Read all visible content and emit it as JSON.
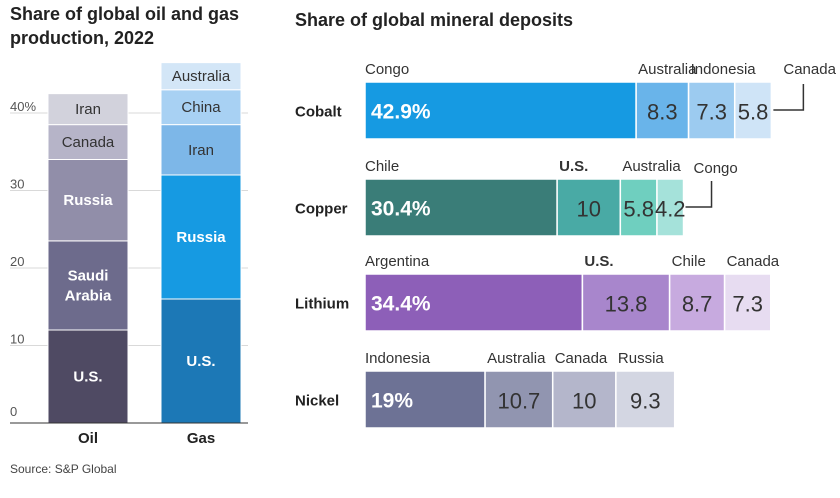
{
  "left_title_line1": "Share of global oil and gas",
  "left_title_line2": "production, 2022",
  "right_title": "Share of global mineral deposits",
  "source": "Source: S&P Global",
  "chart_data": [
    {
      "type": "bar",
      "stacked": true,
      "categories": [
        "Oil",
        "Gas"
      ],
      "ylim": [
        0,
        42
      ],
      "yticks": [
        "0",
        "10",
        "20",
        "30",
        "40%"
      ],
      "stacks": [
        {
          "category": "Oil",
          "segments": [
            {
              "label": "U.S.",
              "value": 12,
              "color": "#4f4a63"
            },
            {
              "label": "Saudi Arabia",
              "value": 11.5,
              "color": "#6d6b8c"
            },
            {
              "label": "Russia",
              "value": 10.5,
              "color": "#918ea9"
            },
            {
              "label": "Canada",
              "value": 4.5,
              "color": "#b6b4c8"
            },
            {
              "label": "Iran",
              "value": 4,
              "color": "#d2d2dc"
            }
          ]
        },
        {
          "category": "Gas",
          "segments": [
            {
              "label": "U.S.",
              "value": 16,
              "color": "#1c78b6"
            },
            {
              "label": "Russia",
              "value": 16,
              "color": "#169ae2"
            },
            {
              "label": "Iran",
              "value": 6.5,
              "color": "#7db7e8"
            },
            {
              "label": "China",
              "value": 4.5,
              "color": "#a8d1f3"
            },
            {
              "label": "Australia",
              "value": 3.5,
              "color": "#d3e6f7"
            }
          ]
        }
      ]
    },
    {
      "type": "bar",
      "orientation": "horizontal",
      "stacked": true,
      "categories": [
        "Cobalt",
        "Copper",
        "Lithium",
        "Nickel"
      ],
      "rows": [
        {
          "category": "Cobalt",
          "segments": [
            {
              "label": "Congo",
              "value": 42.9,
              "display": "42.9%",
              "color": "#169ae2"
            },
            {
              "label": "Australia",
              "value": 8.3,
              "display": "8.3",
              "color": "#69b4ea"
            },
            {
              "label": "Indonesia",
              "value": 7.3,
              "display": "7.3",
              "color": "#9ccbf0"
            },
            {
              "label": "Canada",
              "value": 5.8,
              "display": "5.8",
              "color": "#cfe4f7"
            }
          ]
        },
        {
          "category": "Copper",
          "segments": [
            {
              "label": "Chile",
              "value": 30.4,
              "display": "30.4%",
              "color": "#3a7d78"
            },
            {
              "label": "U.S.",
              "value": 10,
              "display": "10",
              "color": "#49aaa5"
            },
            {
              "label": "Australia",
              "value": 5.8,
              "display": "5.8",
              "color": "#6fcfbf"
            },
            {
              "label": "Congo",
              "value": 4.2,
              "display": "4.2",
              "color": "#a5e2da"
            }
          ]
        },
        {
          "category": "Lithium",
          "segments": [
            {
              "label": "Argentina",
              "value": 34.4,
              "display": "34.4%",
              "color": "#8d5fb8"
            },
            {
              "label": "U.S.",
              "value": 13.8,
              "display": "13.8",
              "color": "#a886cc"
            },
            {
              "label": "Chile",
              "value": 8.7,
              "display": "8.7",
              "color": "#c7aadf"
            },
            {
              "label": "Canada",
              "value": 7.3,
              "display": "7.3",
              "color": "#e7dcf1"
            }
          ]
        },
        {
          "category": "Nickel",
          "segments": [
            {
              "label": "Indonesia",
              "value": 19,
              "display": "19%",
              "color": "#6d7295"
            },
            {
              "label": "Australia",
              "value": 10.7,
              "display": "10.7",
              "color": "#9195b0"
            },
            {
              "label": "Canada",
              "value": 10,
              "display": "10",
              "color": "#b4b6cb"
            },
            {
              "label": "Russia",
              "value": 9.3,
              "display": "9.3",
              "color": "#d3d6e2"
            }
          ]
        }
      ]
    }
  ]
}
